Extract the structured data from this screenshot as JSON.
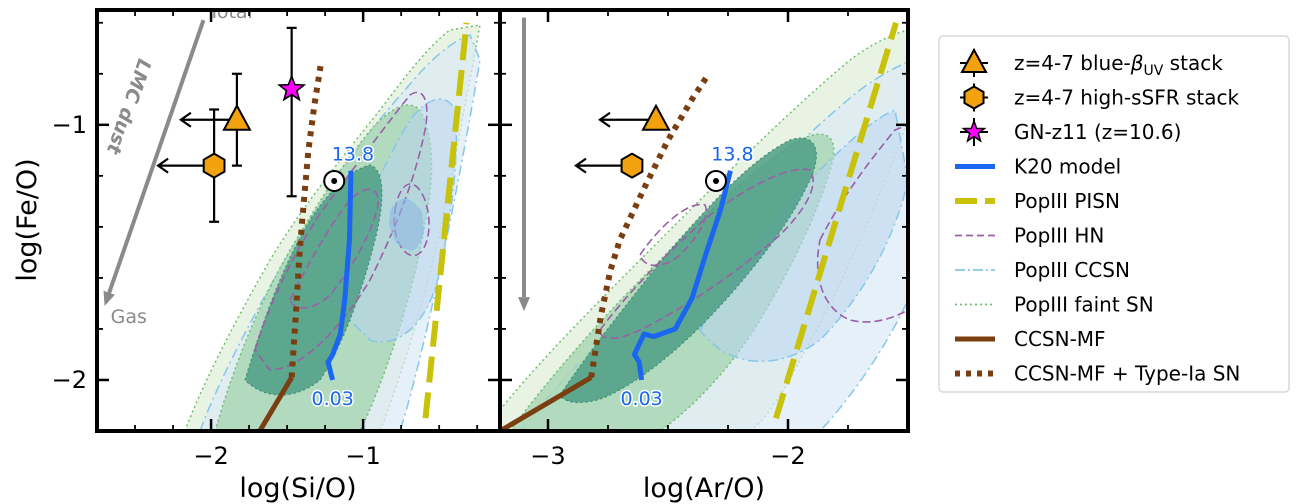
{
  "colors": {
    "blue_model": "#1a66f0",
    "pisn": "#c8c20a",
    "hn": "#9a5fa8",
    "ccsn": "#87c6e8",
    "faint": "#6fbf6f",
    "ccsnmf": "#7a3e10",
    "triangle": "#f2a20e",
    "hexagon": "#f2a20e",
    "star": "#ff00ff",
    "dust_arrow": "#8a8a8a",
    "contour_outer_green": "#e6f2e0",
    "contour_mid_green": "#a9d6b5",
    "contour_inner_green": "#4e9e86",
    "contour_blue": "#9ec8e6"
  },
  "legend": {
    "items": [
      {
        "key": "blue-beta",
        "label_pre": "z=4-7 blue-",
        "label_beta": "β",
        "label_sub": "UV",
        "label_post": " stack",
        "marker": "triangle"
      },
      {
        "key": "high-ssfr",
        "label": "z=4-7 high-sSFR stack",
        "marker": "hexagon"
      },
      {
        "key": "gnz11",
        "label": "GN-z11 (z=10.6)",
        "marker": "star"
      },
      {
        "key": "k20",
        "label": "K20 model",
        "marker": "line-solid-blue"
      },
      {
        "key": "pisn",
        "label": "PopIII PISN",
        "marker": "line-dash-yellow"
      },
      {
        "key": "hn",
        "label": "PopIII HN",
        "marker": "line-dash-purple"
      },
      {
        "key": "ccsn",
        "label": "PopIII CCSN",
        "marker": "line-dashdot-lightblue"
      },
      {
        "key": "faint",
        "label": "PopIII faint SN",
        "marker": "line-dot-green"
      },
      {
        "key": "ccsnmf",
        "label": "CCSN-MF",
        "marker": "line-solid-brown"
      },
      {
        "key": "ccsnmf-ia",
        "label": "CCSN-MF + Type-Ia SN",
        "marker": "line-dot-brown"
      }
    ]
  },
  "annotations": {
    "total": "Total",
    "gas": "Gas",
    "lmc_dust": "LMC dust",
    "age_high": "13.8",
    "age_low": "0.03"
  },
  "chart_data": [
    {
      "type": "scatter",
      "panel": "left",
      "xlabel": "log(Si/O)",
      "ylabel": "log(Fe/O)",
      "xlim": [
        -2.75,
        -0.1
      ],
      "ylim": [
        -2.2,
        -0.55
      ],
      "xticks": [
        -2,
        -1
      ],
      "xtick_labels": [
        "−2",
        "−1"
      ],
      "yticks": [
        -1,
        -2
      ],
      "ytick_labels": [
        "−1",
        "−2"
      ],
      "points": [
        {
          "name": "z=4-7 blue-βUV stack",
          "marker": "triangle",
          "x": -1.83,
          "y": -0.98,
          "yerr": [
            0.18,
            0.18
          ],
          "upper_limit_x": true
        },
        {
          "name": "z=4-7 high-sSFR stack",
          "marker": "hexagon",
          "x": -1.98,
          "y": -1.16,
          "yerr": [
            0.22,
            0.22
          ],
          "upper_limit_x": true
        },
        {
          "name": "GN-z11 (z=10.6)",
          "marker": "star",
          "x": -1.47,
          "y": -0.86,
          "yerr": [
            0.42,
            0.24
          ]
        }
      ],
      "sun": {
        "x": -1.19,
        "y": -1.22
      },
      "k20_model": {
        "x": [
          -1.08,
          -1.09,
          -1.12,
          -1.15,
          -1.2,
          -1.23,
          -1.21,
          -1.2
        ],
        "y": [
          -1.18,
          -1.45,
          -1.68,
          -1.82,
          -1.9,
          -1.93,
          -1.98,
          -2.0
        ]
      },
      "pisn": {
        "x": [
          -0.59,
          -0.32
        ],
        "y": [
          -2.15,
          -0.6
        ]
      },
      "ccsn_mf": {
        "x": [
          -1.47,
          -1.68
        ],
        "y": [
          -1.99,
          -2.2
        ]
      },
      "ccsn_mf_ia": {
        "x": [
          -1.47,
          -1.44,
          -1.42,
          -1.4,
          -1.36,
          -1.32,
          -1.28
        ],
        "y": [
          -1.99,
          -1.72,
          -1.52,
          -1.37,
          -1.1,
          -0.92,
          -0.77
        ]
      },
      "dust_arrow": {
        "x": [
          -2.05,
          -2.7
        ],
        "y": [
          -0.59,
          -1.71
        ]
      }
    },
    {
      "type": "scatter",
      "panel": "right",
      "xlabel": "log(Ar/O)",
      "xlim": [
        -3.2,
        -1.5
      ],
      "ylim": [
        -2.2,
        -0.55
      ],
      "xticks": [
        -3,
        -2
      ],
      "xtick_labels": [
        "−3",
        "−2"
      ],
      "points": [
        {
          "name": "z=4-7 blue-βUV stack",
          "marker": "triangle",
          "x": -2.55,
          "y": -0.98,
          "upper_limit_x": true
        },
        {
          "name": "z=4-7 high-sSFR stack",
          "marker": "hexagon",
          "x": -2.65,
          "y": -1.16,
          "upper_limit_x": true
        }
      ],
      "sun": {
        "x": -2.3,
        "y": -1.22
      },
      "k20_model": {
        "x": [
          -2.24,
          -2.28,
          -2.34,
          -2.4,
          -2.47,
          -2.56,
          -2.6,
          -2.64,
          -2.62,
          -2.61
        ],
        "y": [
          -1.18,
          -1.33,
          -1.5,
          -1.68,
          -1.8,
          -1.83,
          -1.82,
          -1.9,
          -1.93,
          -2.0
        ]
      },
      "pisn": {
        "x": [
          -2.05,
          -1.55
        ],
        "y": [
          -2.15,
          -0.6
        ]
      },
      "ccsn_mf": {
        "x": [
          -2.82,
          -3.2
        ],
        "y": [
          -1.99,
          -2.2
        ]
      },
      "ccsn_mf_ia": {
        "x": [
          -2.82,
          -2.78,
          -2.74,
          -2.7,
          -2.6,
          -2.5,
          -2.4,
          -2.33
        ],
        "y": [
          -1.99,
          -1.75,
          -1.57,
          -1.45,
          -1.25,
          -1.06,
          -0.9,
          -0.8
        ]
      },
      "dust_arrow": {
        "x": [
          -3.1,
          -3.1
        ],
        "y": [
          -0.58,
          -1.73
        ]
      }
    }
  ]
}
